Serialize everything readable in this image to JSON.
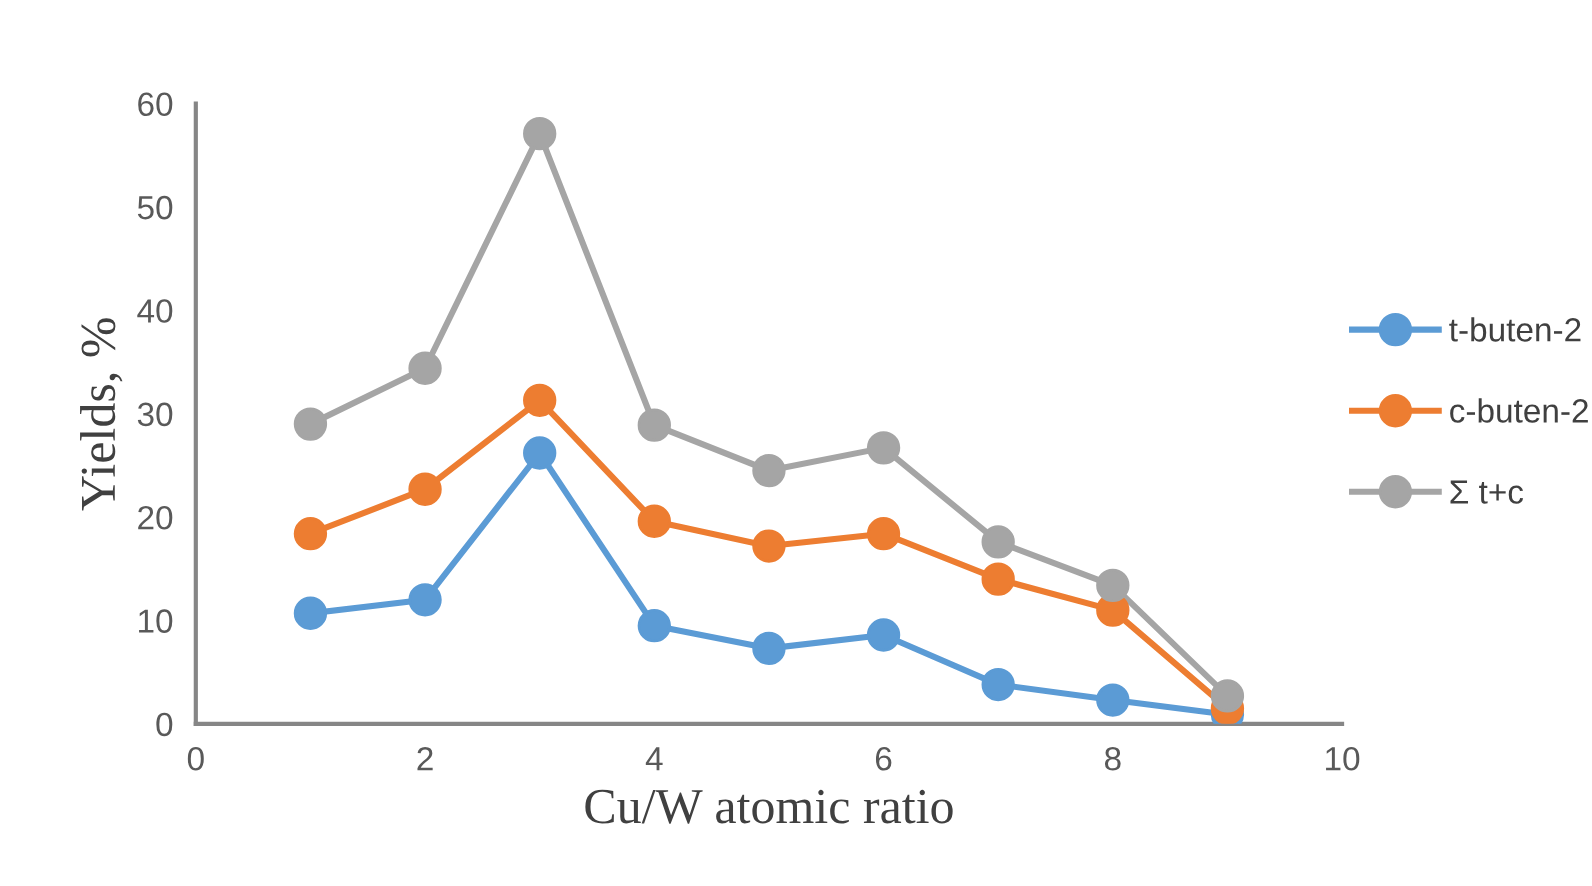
{
  "chart_data": {
    "type": "line",
    "xlabel": "Cu/W atomic ratio",
    "ylabel": "Yields, %",
    "x": [
      1,
      2,
      3,
      4,
      5,
      6,
      7,
      8,
      9
    ],
    "series": [
      {
        "name": "t-buten-2",
        "color": "#5b9bd5",
        "values": [
          10.7,
          12.0,
          26.2,
          9.5,
          7.3,
          8.6,
          3.8,
          2.3,
          0.9
        ]
      },
      {
        "name": "c-buten-2",
        "color": "#ed7d31",
        "values": [
          18.4,
          22.7,
          31.3,
          19.6,
          17.2,
          18.4,
          14.0,
          11.0,
          1.5
        ]
      },
      {
        "name": "Σ t+c",
        "color": "#a5a5a5",
        "values": [
          29.0,
          34.4,
          57.1,
          28.9,
          24.5,
          26.7,
          17.6,
          13.4,
          2.7
        ]
      }
    ],
    "xlim": [
      0,
      10
    ],
    "xticks": [
      0,
      2,
      4,
      6,
      8,
      10
    ],
    "ylim": [
      0,
      60
    ],
    "yticks": [
      0,
      10,
      20,
      30,
      40,
      50,
      60
    ],
    "marker": "circle",
    "line_style": "solid",
    "grid": false,
    "legend": "right"
  }
}
